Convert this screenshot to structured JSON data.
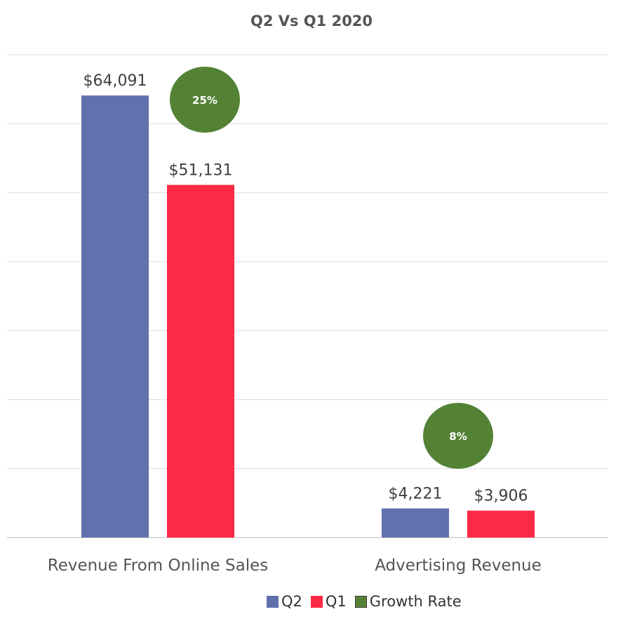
{
  "chart_data": {
    "type": "bar",
    "title": "Q2 Vs Q1 2020",
    "categories": [
      "Revenue From Online Sales",
      "Advertising Revenue"
    ],
    "series": [
      {
        "name": "Q2",
        "color": "#6270ad",
        "values": [
          64091,
          4221
        ],
        "labels": [
          "$64,091",
          "$4,221"
        ]
      },
      {
        "name": "Q1",
        "color": "#fd2a45",
        "values": [
          51131,
          3906
        ],
        "labels": [
          "$51,131",
          "$3,906"
        ]
      }
    ],
    "growth_rate": {
      "name": "Growth Rate",
      "color": "#548235",
      "labels": [
        "25%",
        "8%"
      ]
    },
    "ylim": [
      0,
      70000
    ],
    "grid": true,
    "legend_position": "bottom"
  }
}
